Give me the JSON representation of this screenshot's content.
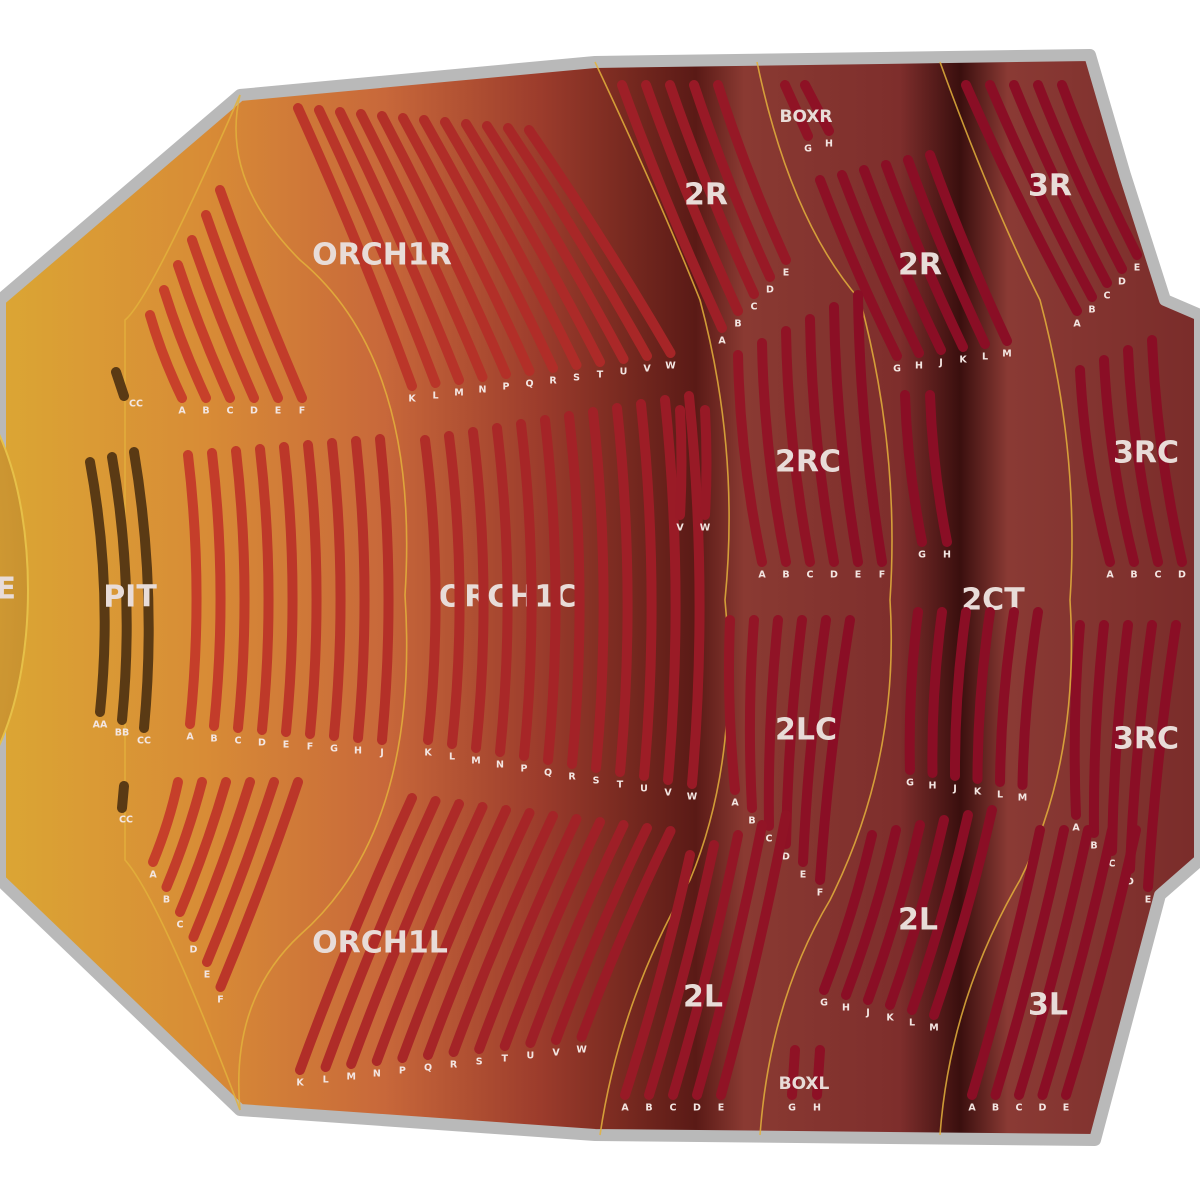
{
  "venue": {
    "stage_label": "STAGE",
    "colors": {
      "outline": "#b9b9b9",
      "front_floor": "#d99a34",
      "rear_floor": "#7a2c2a",
      "front_row": "#c8412a",
      "rear_row": "#8a0e25",
      "divider": "#e3b23c",
      "label": "#e8dcd8"
    }
  },
  "sections": [
    {
      "id": "pit",
      "label": "PIT",
      "rows": [
        "AA",
        "BB",
        "CC"
      ]
    },
    {
      "id": "pit-cc-top",
      "label": "",
      "rows": [
        "CC"
      ]
    },
    {
      "id": "pit-cc-bottom",
      "label": "",
      "rows": [
        "CC"
      ]
    },
    {
      "id": "orch1c-front",
      "label": "ORCH1C",
      "rows": [
        "A",
        "B",
        "C",
        "D",
        "E",
        "F",
        "G",
        "H",
        "J"
      ]
    },
    {
      "id": "orch1c-rear",
      "label": "",
      "rows": [
        "K",
        "L",
        "M",
        "N",
        "P",
        "Q",
        "R",
        "S",
        "T",
        "U",
        "V",
        "W"
      ]
    },
    {
      "id": "orch1c-mid",
      "label": "",
      "rows": [
        "V",
        "W"
      ]
    },
    {
      "id": "orch1r-front",
      "label": "",
      "rows": [
        "A",
        "B",
        "C",
        "D",
        "E",
        "F"
      ]
    },
    {
      "id": "orch1r-rear",
      "label": "ORCH1R",
      "rows": [
        "K",
        "L",
        "M",
        "N",
        "P",
        "Q",
        "R",
        "S",
        "T",
        "U",
        "V",
        "W"
      ]
    },
    {
      "id": "orch1l-front",
      "label": "",
      "rows": [
        "A",
        "B",
        "C",
        "D",
        "E",
        "F"
      ]
    },
    {
      "id": "orch1l-rear",
      "label": "ORCH1L",
      "rows": [
        "K",
        "L",
        "M",
        "N",
        "P",
        "Q",
        "R",
        "S",
        "T",
        "U",
        "V",
        "W"
      ]
    },
    {
      "id": "2r-front",
      "label": "2R",
      "rows": [
        "A",
        "B",
        "C",
        "D",
        "E"
      ]
    },
    {
      "id": "boxr",
      "label": "BOXR",
      "rows": [
        "G",
        "H"
      ]
    },
    {
      "id": "2r-rear",
      "label": "2R",
      "rows": [
        "G",
        "H",
        "J",
        "K",
        "L",
        "M"
      ]
    },
    {
      "id": "3r",
      "label": "3R",
      "rows": [
        "A",
        "B",
        "C",
        "D",
        "E"
      ]
    },
    {
      "id": "2rc",
      "label": "2RC",
      "rows": [
        "A",
        "B",
        "C",
        "D",
        "E",
        "F"
      ]
    },
    {
      "id": "2ct-top",
      "label": "2CT",
      "rows": [
        "G",
        "H"
      ]
    },
    {
      "id": "3rc-top",
      "label": "3RC",
      "rows": [
        "A",
        "B",
        "C",
        "D"
      ]
    },
    {
      "id": "2lc",
      "label": "2LC",
      "rows": [
        "A",
        "B",
        "C",
        "D",
        "E",
        "F"
      ]
    },
    {
      "id": "2ct-bottom",
      "label": "",
      "rows": [
        "G",
        "H",
        "J",
        "K",
        "L",
        "M"
      ]
    },
    {
      "id": "3rc-bottom",
      "label": "3RC",
      "rows": [
        "A",
        "B",
        "C",
        "D",
        "E"
      ]
    },
    {
      "id": "2l-front",
      "label": "2L",
      "rows": [
        "A",
        "B",
        "C",
        "D",
        "E"
      ]
    },
    {
      "id": "2l-rear",
      "label": "2L",
      "rows": [
        "G",
        "H",
        "J",
        "K",
        "L",
        "M"
      ]
    },
    {
      "id": "boxl",
      "label": "BOXL",
      "rows": [
        "G",
        "H"
      ]
    },
    {
      "id": "3l",
      "label": "3L",
      "rows": [
        "A",
        "B",
        "C",
        "D",
        "E"
      ]
    }
  ]
}
